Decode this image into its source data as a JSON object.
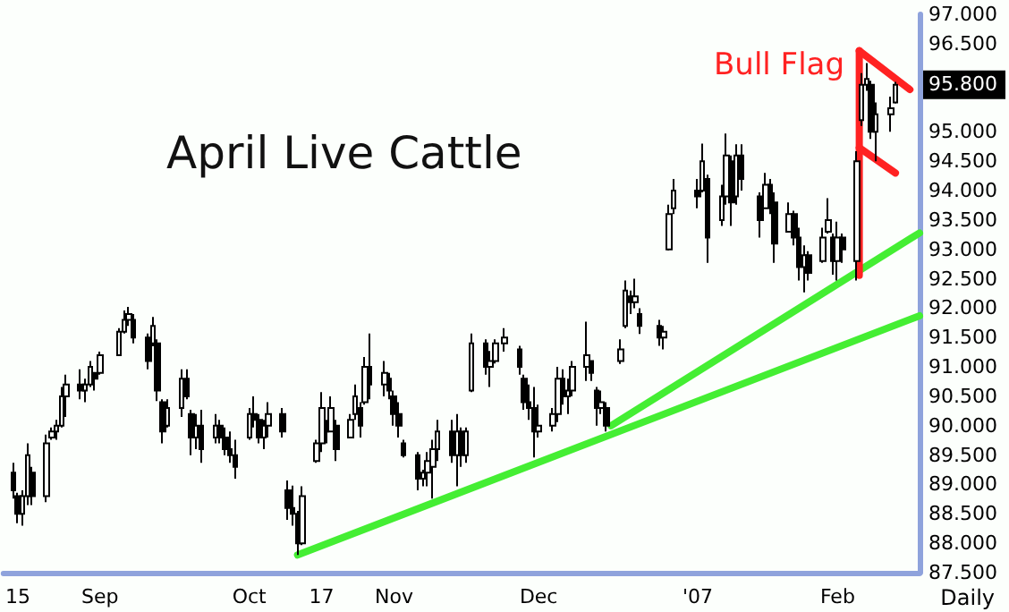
{
  "chart_data": {
    "type": "candlestick",
    "title": "April Live Cattle",
    "color": "#000000",
    "x": [
      "2006-08-14",
      "2006-08-15",
      "2006-08-16",
      "2006-08-17",
      "2006-08-18",
      "2006-08-21",
      "2006-08-22",
      "2006-08-23",
      "2006-08-24",
      "2006-08-25",
      "2006-08-28",
      "2006-08-29",
      "2006-08-30",
      "2006-08-31",
      "2006-09-01",
      "2006-09-05",
      "2006-09-06",
      "2006-09-07",
      "2006-09-08",
      "2006-09-11",
      "2006-09-12",
      "2006-09-13",
      "2006-09-14",
      "2006-09-15",
      "2006-09-18",
      "2006-09-19",
      "2006-09-20",
      "2006-09-21",
      "2006-09-22",
      "2006-09-25",
      "2006-09-26",
      "2006-09-27",
      "2006-09-28",
      "2006-09-29",
      "2006-10-02",
      "2006-10-03",
      "2006-10-04",
      "2006-10-05",
      "2006-10-06",
      "2006-10-09",
      "2006-10-10",
      "2006-10-11",
      "2006-10-12",
      "2006-10-13",
      "2006-10-16",
      "2006-10-17",
      "2006-10-18",
      "2006-10-19",
      "2006-10-20",
      "2006-10-23",
      "2006-10-24",
      "2006-10-25",
      "2006-10-26",
      "2006-10-27",
      "2006-10-30",
      "2006-10-31",
      "2006-11-01",
      "2006-11-02",
      "2006-11-03",
      "2006-11-06",
      "2006-11-07",
      "2006-11-08",
      "2006-11-09",
      "2006-11-10",
      "2006-11-13",
      "2006-11-14",
      "2006-11-15",
      "2006-11-16",
      "2006-11-17",
      "2006-11-20",
      "2006-11-21",
      "2006-11-22",
      "2006-11-24",
      "2006-11-27",
      "2006-11-28",
      "2006-11-29",
      "2006-11-30",
      "2006-12-01",
      "2006-12-04",
      "2006-12-05",
      "2006-12-06",
      "2006-12-07",
      "2006-12-08",
      "2006-12-11",
      "2006-12-12",
      "2006-12-13",
      "2006-12-14",
      "2006-12-15",
      "2006-12-18",
      "2006-12-19",
      "2006-12-20",
      "2006-12-21",
      "2006-12-22",
      "2006-12-26",
      "2006-12-27",
      "2006-12-28",
      "2006-12-29",
      "2007-01-03",
      "2007-01-04",
      "2007-01-05",
      "2007-01-08",
      "2007-01-09",
      "2007-01-10",
      "2007-01-11",
      "2007-01-12",
      "2007-01-16",
      "2007-01-17",
      "2007-01-18",
      "2007-01-19",
      "2007-01-22",
      "2007-01-23",
      "2007-01-24",
      "2007-01-25",
      "2007-01-26",
      "2007-01-29",
      "2007-01-30",
      "2007-01-31",
      "2007-02-01",
      "2007-02-02",
      "2007-02-05",
      "2007-02-06",
      "2007-02-07",
      "2007-02-08",
      "2007-02-09",
      "2007-02-12",
      "2007-02-13"
    ],
    "ohlc": [
      [
        89.2,
        89.37,
        88.76,
        88.9
      ],
      [
        88.8,
        88.86,
        88.34,
        88.5
      ],
      [
        88.5,
        88.9,
        88.3,
        88.8
      ],
      [
        88.8,
        89.7,
        88.65,
        89.5
      ],
      [
        89.2,
        89.3,
        88.65,
        88.8
      ],
      [
        88.8,
        89.85,
        88.7,
        89.7
      ],
      [
        89.8,
        89.97,
        89.76,
        89.9
      ],
      [
        89.9,
        90.1,
        89.76,
        90.0
      ],
      [
        90.0,
        90.66,
        89.97,
        90.5
      ],
      [
        90.5,
        90.87,
        90.15,
        90.7
      ],
      [
        90.7,
        90.96,
        90.45,
        90.6
      ],
      [
        90.6,
        90.8,
        90.4,
        90.7
      ],
      [
        90.7,
        91.1,
        90.66,
        91.0
      ],
      [
        90.9,
        90.9,
        90.6,
        90.8
      ],
      [
        90.9,
        91.26,
        90.87,
        91.2
      ],
      [
        91.2,
        91.66,
        91.2,
        91.6
      ],
      [
        91.6,
        91.96,
        91.57,
        91.8
      ],
      [
        91.8,
        92.02,
        91.7,
        91.9
      ],
      [
        91.8,
        91.9,
        91.4,
        91.5
      ],
      [
        91.5,
        91.57,
        90.96,
        91.1
      ],
      [
        91.4,
        91.85,
        91.35,
        91.7
      ],
      [
        91.4,
        91.47,
        90.42,
        90.6
      ],
      [
        90.4,
        90.45,
        89.7,
        89.9
      ],
      [
        90.0,
        90.45,
        89.97,
        90.3
      ],
      [
        90.3,
        90.96,
        90.15,
        90.8
      ],
      [
        90.8,
        90.96,
        90.45,
        90.5
      ],
      [
        90.2,
        90.27,
        89.5,
        89.8
      ],
      [
        89.8,
        90.2,
        89.6,
        90.0
      ],
      [
        90.0,
        90.27,
        89.37,
        89.6
      ],
      [
        89.8,
        90.2,
        89.7,
        90.0
      ],
      [
        90.0,
        90.1,
        89.7,
        89.8
      ],
      [
        89.8,
        89.97,
        89.5,
        89.6
      ],
      [
        89.6,
        89.9,
        89.37,
        89.5
      ],
      [
        89.5,
        89.76,
        89.1,
        89.3
      ],
      [
        89.8,
        90.3,
        89.76,
        90.2
      ],
      [
        90.2,
        90.5,
        89.97,
        90.1
      ],
      [
        90.1,
        90.2,
        89.7,
        89.8
      ],
      [
        89.8,
        90.1,
        89.6,
        90.0
      ],
      [
        90.0,
        90.4,
        89.8,
        90.2
      ],
      [
        90.2,
        90.3,
        89.8,
        89.9
      ],
      [
        88.9,
        89.07,
        88.4,
        88.6
      ],
      [
        88.6,
        88.98,
        88.3,
        88.5
      ],
      [
        88.5,
        88.55,
        87.8,
        88.0
      ],
      [
        88.0,
        88.97,
        87.97,
        88.8
      ],
      [
        89.4,
        89.76,
        89.37,
        89.7
      ],
      [
        89.7,
        90.57,
        89.55,
        90.3
      ],
      [
        90.0,
        90.1,
        89.7,
        89.9
      ],
      [
        89.9,
        90.5,
        89.9,
        90.3
      ],
      [
        90.0,
        90.1,
        89.4,
        89.6
      ],
      [
        89.8,
        90.2,
        89.8,
        90.1
      ],
      [
        90.2,
        90.7,
        90.1,
        90.5
      ],
      [
        90.3,
        90.4,
        89.8,
        90.0
      ],
      [
        90.4,
        91.17,
        90.36,
        91.0
      ],
      [
        91.0,
        91.57,
        90.45,
        90.7
      ],
      [
        90.7,
        91.1,
        90.5,
        90.9
      ],
      [
        90.8,
        90.9,
        90.45,
        90.6
      ],
      [
        90.5,
        90.6,
        90.0,
        90.2
      ],
      [
        90.2,
        90.4,
        89.8,
        90.0
      ],
      [
        89.7,
        89.76,
        89.46,
        89.5
      ],
      [
        89.5,
        89.55,
        88.9,
        89.1
      ],
      [
        89.1,
        89.25,
        88.97,
        89.2
      ],
      [
        89.2,
        89.55,
        88.97,
        89.4
      ],
      [
        89.3,
        89.76,
        88.76,
        89.6
      ],
      [
        89.6,
        90.1,
        89.4,
        89.9
      ],
      [
        89.9,
        90.1,
        89.37,
        89.5
      ],
      [
        89.5,
        90.2,
        88.97,
        89.9
      ],
      [
        89.9,
        89.97,
        89.3,
        89.5
      ],
      [
        89.5,
        89.97,
        89.37,
        89.9
      ],
      [
        90.6,
        91.57,
        90.57,
        91.4
      ],
      [
        91.4,
        91.47,
        90.87,
        91.0
      ],
      [
        91.0,
        91.27,
        90.66,
        91.1
      ],
      [
        91.1,
        91.47,
        91.06,
        91.4
      ],
      [
        91.4,
        91.66,
        91.26,
        91.5
      ],
      [
        91.3,
        91.36,
        90.87,
        91.0
      ],
      [
        90.8,
        90.87,
        90.27,
        90.4
      ],
      [
        90.4,
        90.7,
        90.1,
        90.3
      ],
      [
        90.3,
        90.66,
        89.46,
        89.9
      ],
      [
        89.9,
        90.36,
        89.8,
        90.0
      ],
      [
        90.0,
        90.3,
        89.9,
        90.2
      ],
      [
        90.2,
        91.0,
        90.06,
        90.8
      ],
      [
        90.8,
        90.96,
        90.36,
        90.5
      ],
      [
        90.5,
        90.8,
        90.2,
        90.6
      ],
      [
        90.6,
        91.1,
        90.5,
        91.0
      ],
      [
        91.0,
        91.77,
        90.76,
        91.2
      ],
      [
        91.1,
        91.1,
        90.76,
        90.9
      ],
      [
        90.6,
        90.66,
        90.0,
        90.3
      ],
      [
        90.3,
        90.6,
        90.2,
        90.4
      ],
      [
        90.3,
        90.4,
        89.9,
        90.0
      ],
      [
        91.1,
        91.47,
        91.05,
        91.3
      ],
      [
        91.7,
        92.47,
        91.66,
        92.3
      ],
      [
        92.2,
        92.3,
        91.9,
        92.1
      ],
      [
        92.1,
        92.5,
        92.0,
        92.2
      ],
      [
        91.9,
        92.0,
        91.56,
        91.7
      ],
      [
        91.7,
        91.8,
        91.36,
        91.5
      ],
      [
        91.5,
        91.7,
        91.3,
        91.6
      ],
      [
        93.0,
        93.76,
        92.98,
        93.6
      ],
      [
        93.7,
        94.2,
        93.6,
        94.0
      ],
      [
        94.0,
        94.2,
        93.7,
        93.9
      ],
      [
        94.0,
        94.8,
        93.97,
        94.5
      ],
      [
        94.2,
        94.27,
        92.77,
        93.2
      ],
      [
        93.5,
        94.1,
        93.4,
        93.9
      ],
      [
        93.9,
        94.97,
        93.76,
        94.6
      ],
      [
        94.5,
        94.6,
        93.4,
        93.8
      ],
      [
        93.9,
        94.79,
        93.76,
        94.6
      ],
      [
        94.6,
        94.79,
        94.0,
        94.2
      ],
      [
        93.9,
        93.97,
        93.2,
        93.5
      ],
      [
        93.7,
        94.3,
        93.7,
        94.1
      ],
      [
        94.1,
        94.2,
        93.6,
        93.8
      ],
      [
        93.8,
        93.97,
        92.77,
        93.1
      ],
      [
        93.3,
        93.8,
        93.3,
        93.6
      ],
      [
        93.6,
        93.66,
        93.07,
        93.2
      ],
      [
        93.2,
        93.37,
        92.47,
        92.7
      ],
      [
        92.7,
        93.07,
        92.27,
        92.9
      ],
      [
        92.9,
        92.97,
        92.47,
        92.6
      ],
      [
        92.8,
        93.37,
        92.77,
        93.2
      ],
      [
        93.3,
        93.87,
        93.27,
        93.5
      ],
      [
        93.2,
        93.27,
        92.57,
        92.8
      ],
      [
        92.8,
        93.47,
        92.47,
        93.2
      ],
      [
        93.2,
        93.27,
        92.77,
        93.0
      ],
      [
        92.8,
        94.67,
        92.47,
        94.5
      ],
      [
        95.2,
        96.0,
        95.1,
        95.8
      ],
      [
        95.8,
        96.17,
        95.7,
        95.9
      ],
      [
        95.8,
        95.87,
        94.88,
        95.0
      ],
      [
        95.0,
        95.5,
        94.5,
        95.3
      ],
      [
        95.3,
        95.6,
        95.0,
        95.4
      ],
      [
        95.5,
        95.85,
        95.48,
        95.8
      ]
    ],
    "series": [
      {
        "type": "line",
        "color": "#44ee33",
        "x": [
          "2006-10-12",
          "2007-02-18"
        ],
        "values": [
          87.8,
          91.87
        ]
      },
      {
        "type": "line",
        "color": "#44ee33",
        "x": [
          "2006-12-16",
          "2007-02-18"
        ],
        "values": [
          90.0,
          93.28
        ]
      },
      {
        "type": "line",
        "color": "#ff2222",
        "x": [
          "2007-02-05T12:00",
          "2007-02-05T12:00"
        ],
        "values": [
          92.56,
          96.38
        ]
      },
      {
        "type": "line",
        "color": "#ff2222",
        "x": [
          "2007-02-05T12:00",
          "2007-02-16"
        ],
        "values": [
          96.38,
          95.72
        ]
      },
      {
        "type": "line",
        "color": "#ff2222",
        "x": [
          "2007-02-05T12:00",
          "2007-02-13"
        ],
        "values": [
          94.73,
          94.3
        ]
      }
    ],
    "annotations": [
      "Bull Flag",
      "Daily",
      "95.800"
    ],
    "xlim": [
      "2006-08-12",
      "2007-02-18"
    ],
    "xticks": [
      {
        "value": "2006-08-15",
        "label": "15"
      },
      {
        "value": "2006-09-01",
        "label": "Sep"
      },
      {
        "value": "2006-10-02",
        "label": "Oct"
      },
      {
        "value": "2006-10-17",
        "label": "17"
      },
      {
        "value": "2006-11-01",
        "label": "Nov"
      },
      {
        "value": "2006-12-01",
        "label": "Dec"
      },
      {
        "value": "2007-01-03",
        "label": "'07"
      },
      {
        "value": "2007-02-01",
        "label": "Feb"
      }
    ],
    "ylim": [
      87.5,
      97
    ],
    "yticks": [
      {
        "value": 87.5,
        "label": "87.500"
      },
      {
        "value": 88,
        "label": "88.000"
      },
      {
        "value": 88.5,
        "label": "88.500"
      },
      {
        "value": 89,
        "label": "89.000"
      },
      {
        "value": 89.5,
        "label": "89.500"
      },
      {
        "value": 90,
        "label": "90.000"
      },
      {
        "value": 90.5,
        "label": "90.500"
      },
      {
        "value": 91,
        "label": "91.000"
      },
      {
        "value": 91.5,
        "label": "91.500"
      },
      {
        "value": 92,
        "label": "92.000"
      },
      {
        "value": 92.5,
        "label": "92.500"
      },
      {
        "value": 93,
        "label": "93.000"
      },
      {
        "value": 93.5,
        "label": "93.500"
      },
      {
        "value": 94,
        "label": "94.000"
      },
      {
        "value": 94.5,
        "label": "94.500"
      },
      {
        "value": 95,
        "label": "95.000"
      },
      {
        "value": 96.5,
        "label": "96.500"
      },
      {
        "value": 97,
        "label": "97.000"
      }
    ],
    "grid": false
  }
}
